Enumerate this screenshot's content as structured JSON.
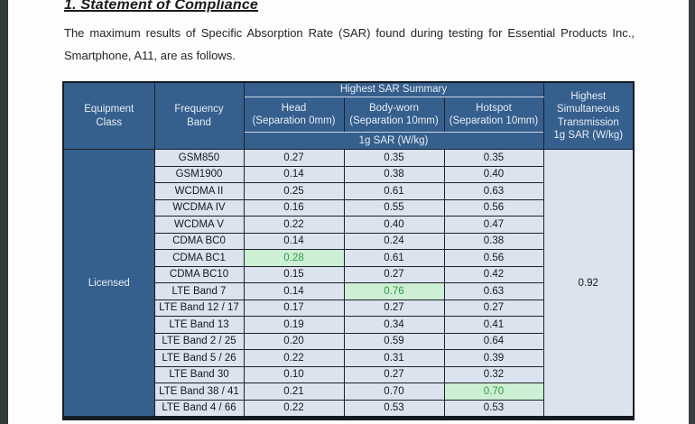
{
  "page": {
    "title": "1. Statement of Compliance",
    "intro": "The maximum results of Specific Absorption Rate (SAR) found during testing for Essential Products Inc., Smartphone, A11, are as follows."
  },
  "table": {
    "headers": {
      "equipment_class": "Equipment\nClass",
      "frequency_band": "Frequency\nBand",
      "sar_summary": "Highest SAR Summary",
      "head": "Head\n(Separation 0mm)",
      "body_worn": "Body-worn\n(Separation 10mm)",
      "hotspot": "Hotspot\n(Separation 10mm)",
      "unit": "1g SAR (W/kg)",
      "simultaneous": "Highest\nSimultaneous\nTransmission\n1g SAR (W/kg)"
    },
    "equipment_class_value": "Licensed",
    "simultaneous_value": "0.92",
    "rows": [
      {
        "band": "GSM850",
        "values": [
          "0.27",
          "0.35",
          "0.35"
        ],
        "highlight": -1
      },
      {
        "band": "GSM1900",
        "values": [
          "0.14",
          "0.38",
          "0.40"
        ],
        "highlight": -1
      },
      {
        "band": "WCDMA II",
        "values": [
          "0.25",
          "0.61",
          "0.63"
        ],
        "highlight": -1
      },
      {
        "band": "WCDMA IV",
        "values": [
          "0.16",
          "0.55",
          "0.56"
        ],
        "highlight": -1
      },
      {
        "band": "WCDMA V",
        "values": [
          "0.22",
          "0.40",
          "0.47"
        ],
        "highlight": -1
      },
      {
        "band": "CDMA BC0",
        "values": [
          "0.14",
          "0.24",
          "0.38"
        ],
        "highlight": -1
      },
      {
        "band": "CDMA BC1",
        "values": [
          "0.28",
          "0.61",
          "0.56"
        ],
        "highlight": 0
      },
      {
        "band": "CDMA BC10",
        "values": [
          "0.15",
          "0.27",
          "0.42"
        ],
        "highlight": -1
      },
      {
        "band": "LTE Band 7",
        "values": [
          "0.14",
          "0.76",
          "0.63"
        ],
        "highlight": 1
      },
      {
        "band": "LTE Band 12 / 17",
        "values": [
          "0.17",
          "0.27",
          "0.27"
        ],
        "highlight": -1
      },
      {
        "band": "LTE Band 13",
        "values": [
          "0.19",
          "0.34",
          "0.41"
        ],
        "highlight": -1
      },
      {
        "band": "LTE Band 2 / 25",
        "values": [
          "0.20",
          "0.59",
          "0.64"
        ],
        "highlight": -1
      },
      {
        "band": "LTE Band 5 / 26",
        "values": [
          "0.22",
          "0.31",
          "0.39"
        ],
        "highlight": -1
      },
      {
        "band": "LTE Band 30",
        "values": [
          "0.10",
          "0.27",
          "0.32"
        ],
        "highlight": -1
      },
      {
        "band": "LTE Band 38 / 41",
        "values": [
          "0.21",
          "0.70",
          "0.70"
        ],
        "highlight": 2
      },
      {
        "band": "LTE Band 4 / 66",
        "values": [
          "0.22",
          "0.53",
          "0.53"
        ],
        "highlight": -1
      }
    ]
  },
  "colors": {
    "header_bg": "#355F8D",
    "header_text": "#E8EEF6",
    "cell_bg": "#DBE3EE",
    "highlight_bg": "#CDEFD3",
    "highlight_text": "#2E9B45",
    "border_dark": "#1C212B"
  }
}
